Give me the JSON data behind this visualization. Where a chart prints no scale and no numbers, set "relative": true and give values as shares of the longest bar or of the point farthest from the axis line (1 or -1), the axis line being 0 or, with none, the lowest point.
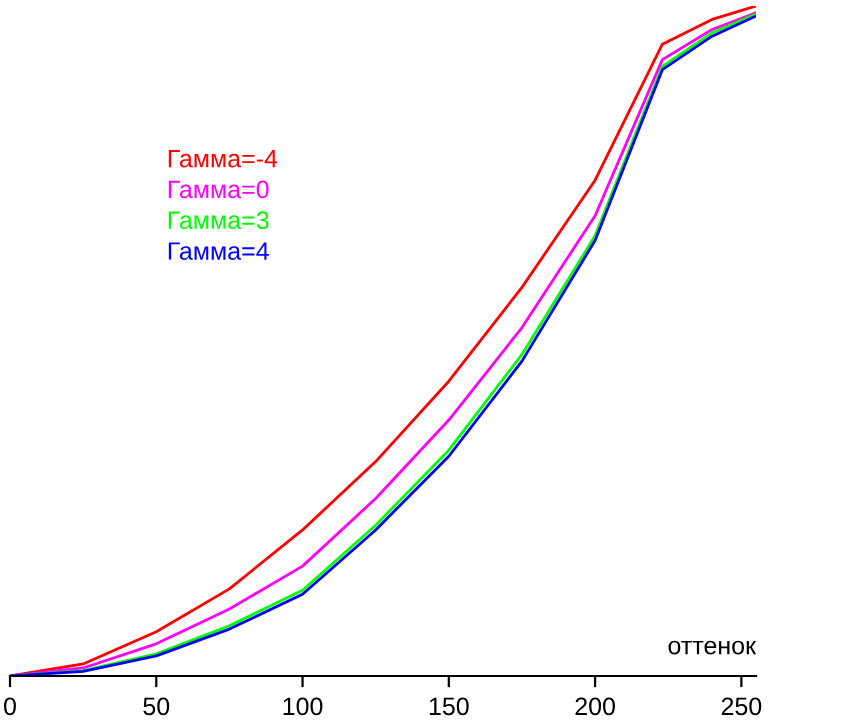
{
  "chart_data": {
    "type": "line",
    "xlabel": "оттенок",
    "relative": true,
    "xlim": [
      0,
      255
    ],
    "xticks": [
      0,
      50,
      100,
      150,
      200,
      250
    ],
    "legend": "top left",
    "grid": false,
    "marker": "none",
    "line_style": "solid",
    "x": [
      0,
      25,
      50,
      75,
      100,
      125,
      150,
      175,
      200,
      223,
      240,
      255
    ],
    "series": [
      {
        "name": "Гамма=-4",
        "color": "#ff0000",
        "values": [
          0,
          0.018,
          0.066,
          0.13,
          0.218,
          0.32,
          0.44,
          0.58,
          0.74,
          0.943,
          0.98,
          1.0
        ]
      },
      {
        "name": "Гамма=0",
        "color": "#ff00ff",
        "values": [
          0,
          0.012,
          0.048,
          0.1,
          0.164,
          0.265,
          0.382,
          0.52,
          0.687,
          0.92,
          0.965,
          0.99
        ]
      },
      {
        "name": "Гамма=3",
        "color": "#00ff00",
        "values": [
          0,
          0.008,
          0.033,
          0.075,
          0.128,
          0.225,
          0.337,
          0.48,
          0.657,
          0.91,
          0.96,
          0.988
        ]
      },
      {
        "name": "Гамма=4",
        "color": "#0000ff",
        "values": [
          0,
          0.007,
          0.03,
          0.07,
          0.122,
          0.218,
          0.328,
          0.47,
          0.65,
          0.905,
          0.955,
          0.985
        ]
      }
    ]
  }
}
